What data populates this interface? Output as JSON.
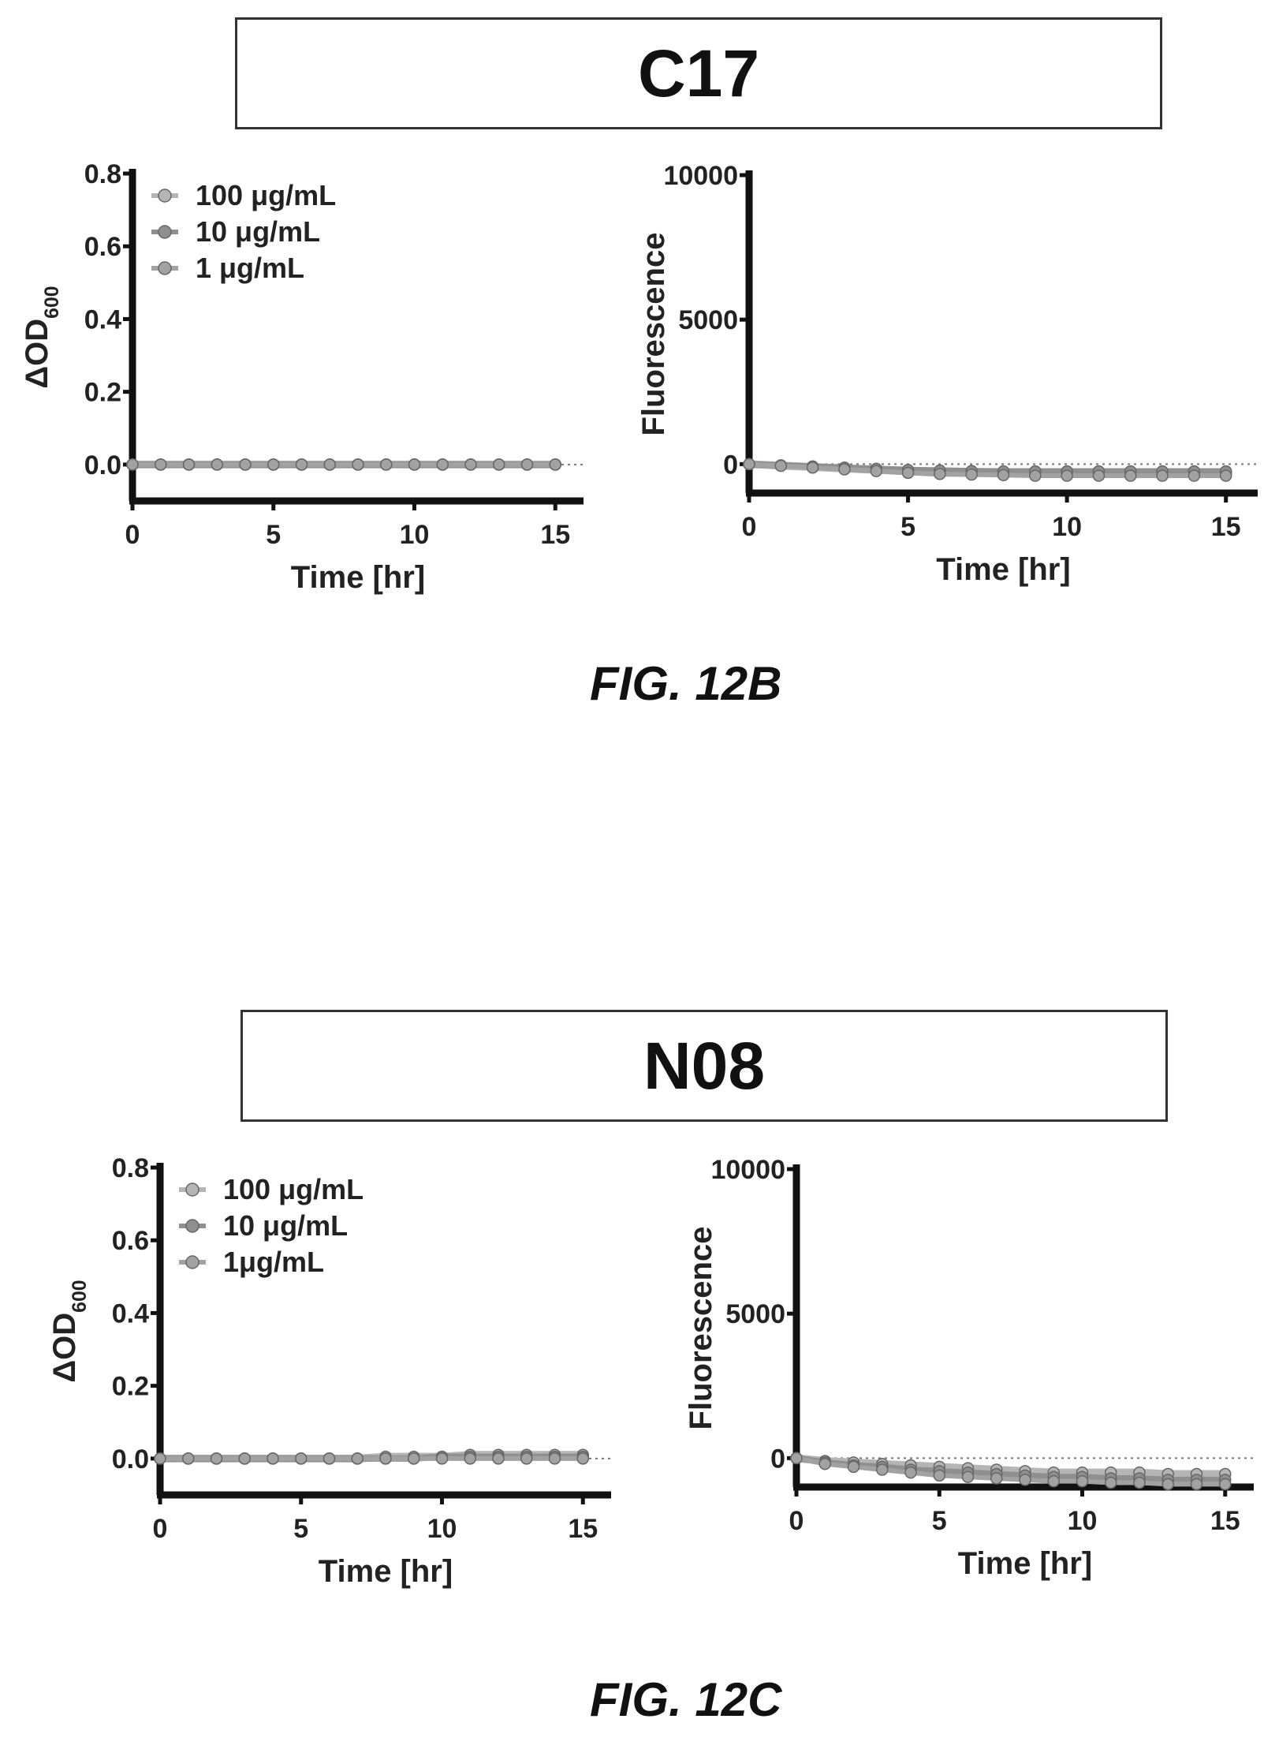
{
  "figures": [
    {
      "panel_title": "C17",
      "caption": "FIG. 12B"
    },
    {
      "panel_title": "N08",
      "caption": "FIG. 12C"
    }
  ],
  "colors": {
    "axis": "#111111",
    "series": [
      "#b5b5b5",
      "#8f8f8f",
      "#a2a2a2"
    ]
  },
  "chart_data": [
    {
      "type": "line",
      "figure": "FIG. 12B",
      "panel": "C17",
      "ylabel_main": "ΔOD",
      "ylabel_sub": "600",
      "xlabel": "Time [hr]",
      "xlim": [
        0,
        16
      ],
      "ylim": [
        -0.1,
        0.8
      ],
      "xticks": [
        "0",
        "5",
        "10",
        "15"
      ],
      "xtick_values": [
        0,
        5,
        10,
        15
      ],
      "yticks": [
        "0.0",
        "0.2",
        "0.4",
        "0.6",
        "0.8"
      ],
      "ytick_values": [
        0,
        0.2,
        0.4,
        0.6,
        0.8
      ],
      "legend": "top-left",
      "grid": false,
      "x": [
        0,
        1,
        2,
        3,
        4,
        5,
        6,
        7,
        8,
        9,
        10,
        11,
        12,
        13,
        14,
        15
      ],
      "series": [
        {
          "name": "100 μg/mL",
          "values": [
            0,
            0,
            0,
            0,
            0,
            0,
            0,
            0,
            0,
            0,
            0,
            0,
            0,
            0,
            0,
            0
          ]
        },
        {
          "name": "10 μg/mL",
          "values": [
            0,
            0,
            0,
            0,
            0,
            0,
            0,
            0,
            0,
            0,
            0,
            0,
            0,
            0,
            0,
            0
          ]
        },
        {
          "name": "1 μg/mL",
          "values": [
            0,
            0,
            0,
            0,
            0,
            0,
            0,
            0,
            0,
            0,
            0,
            0,
            0,
            0,
            0,
            0
          ]
        }
      ]
    },
    {
      "type": "line",
      "figure": "FIG. 12B",
      "panel": "C17",
      "ylabel": "Fluorescence",
      "xlabel": "Time [hr]",
      "xlim": [
        0,
        16
      ],
      "ylim": [
        -1000,
        10000
      ],
      "xticks": [
        "0",
        "5",
        "10",
        "15"
      ],
      "xtick_values": [
        0,
        5,
        10,
        15
      ],
      "yticks": [
        "0",
        "5000",
        "10000"
      ],
      "ytick_values": [
        0,
        5000,
        10000
      ],
      "grid": false,
      "x": [
        0,
        1,
        2,
        3,
        4,
        5,
        6,
        7,
        8,
        9,
        10,
        11,
        12,
        13,
        14,
        15
      ],
      "series": [
        {
          "values": [
            0,
            -50,
            -100,
            -150,
            -200,
            -250,
            -300,
            -300,
            -300,
            -300,
            -300,
            -300,
            -300,
            -300,
            -300,
            -300
          ]
        },
        {
          "values": [
            0,
            -40,
            -80,
            -120,
            -160,
            -200,
            -220,
            -240,
            -250,
            -250,
            -250,
            -250,
            -250,
            -250,
            -250,
            -250
          ]
        },
        {
          "values": [
            0,
            -60,
            -120,
            -180,
            -240,
            -300,
            -340,
            -360,
            -380,
            -400,
            -400,
            -400,
            -400,
            -400,
            -400,
            -400
          ]
        }
      ]
    },
    {
      "type": "line",
      "figure": "FIG. 12C",
      "panel": "N08",
      "ylabel_main": "ΔOD",
      "ylabel_sub": "600",
      "xlabel": "Time [hr]",
      "xlim": [
        0,
        16
      ],
      "ylim": [
        -0.1,
        0.8
      ],
      "xticks": [
        "0",
        "5",
        "10",
        "15"
      ],
      "xtick_values": [
        0,
        5,
        10,
        15
      ],
      "yticks": [
        "0.0",
        "0.2",
        "0.4",
        "0.6",
        "0.8"
      ],
      "ytick_values": [
        0,
        0.2,
        0.4,
        0.6,
        0.8
      ],
      "legend": "top-left",
      "grid": false,
      "x": [
        0,
        1,
        2,
        3,
        4,
        5,
        6,
        7,
        8,
        9,
        10,
        11,
        12,
        13,
        14,
        15
      ],
      "series": [
        {
          "name": "100 μg/mL",
          "values": [
            0,
            0,
            0,
            0,
            0,
            0,
            0,
            0,
            0.005,
            0.005,
            0.005,
            0.01,
            0.01,
            0.01,
            0.01,
            0.01
          ]
        },
        {
          "name": "10 μg/mL",
          "values": [
            0,
            0,
            0,
            0,
            0,
            0,
            0,
            0,
            0,
            0,
            0.005,
            0.005,
            0.005,
            0.005,
            0.005,
            0.005
          ]
        },
        {
          "name": "1μg/mL",
          "values": [
            0,
            0,
            0,
            0,
            0,
            0,
            0,
            0,
            0,
            0,
            0,
            0,
            0,
            0,
            0,
            0
          ]
        }
      ]
    },
    {
      "type": "line",
      "figure": "FIG. 12C",
      "panel": "N08",
      "ylabel": "Fluorescence",
      "xlabel": "Time [hr]",
      "xlim": [
        0,
        16
      ],
      "ylim": [
        -1000,
        10000
      ],
      "xticks": [
        "0",
        "5",
        "10",
        "15"
      ],
      "xtick_values": [
        0,
        5,
        10,
        15
      ],
      "yticks": [
        "0",
        "5000",
        "10000"
      ],
      "ytick_values": [
        0,
        5000,
        10000
      ],
      "grid": false,
      "x": [
        0,
        1,
        2,
        3,
        4,
        5,
        6,
        7,
        8,
        9,
        10,
        11,
        12,
        13,
        14,
        15
      ],
      "series": [
        {
          "values": [
            0,
            -100,
            -150,
            -200,
            -250,
            -300,
            -350,
            -400,
            -450,
            -500,
            -500,
            -500,
            -500,
            -550,
            -550,
            -550
          ]
        },
        {
          "values": [
            0,
            -150,
            -250,
            -300,
            -400,
            -450,
            -500,
            -550,
            -600,
            -650,
            -650,
            -700,
            -700,
            -750,
            -750,
            -750
          ]
        },
        {
          "values": [
            0,
            -200,
            -300,
            -400,
            -500,
            -600,
            -650,
            -700,
            -750,
            -800,
            -800,
            -850,
            -850,
            -900,
            -900,
            -900
          ]
        }
      ]
    }
  ]
}
